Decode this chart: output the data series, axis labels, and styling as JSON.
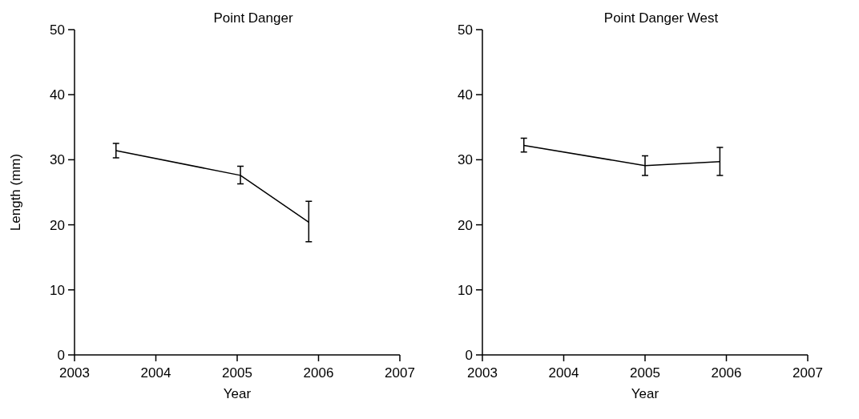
{
  "chart_data": [
    {
      "type": "line",
      "title": "Point Danger",
      "xlabel": "Year",
      "ylabel": "Length (mm)",
      "x": [
        2003.51,
        2005.04,
        2005.88
      ],
      "series": [
        {
          "color": "#000000",
          "values": [
            31.4,
            27.6,
            20.4
          ],
          "errors": [
            [
              30.3,
              32.5
            ],
            [
              26.3,
              29.0
            ],
            [
              17.4,
              23.6
            ]
          ]
        }
      ],
      "xlim": [
        2003,
        2007
      ],
      "xticks": [
        2003,
        2004,
        2005,
        2006,
        2007
      ],
      "ylim": [
        0,
        50
      ],
      "yticks": [
        0,
        10,
        20,
        30,
        40,
        50
      ],
      "grid": false,
      "marker": "none",
      "line_style": "solid"
    },
    {
      "type": "line",
      "title": "Point Danger West",
      "xlabel": "Year",
      "x": [
        2003.51,
        2005.0,
        2005.92
      ],
      "series": [
        {
          "color": "#000000",
          "values": [
            32.2,
            29.1,
            29.7
          ],
          "errors": [
            [
              31.2,
              33.3
            ],
            [
              27.6,
              30.6
            ],
            [
              27.6,
              31.9
            ]
          ]
        }
      ],
      "xlim": [
        2003,
        2007
      ],
      "xticks": [
        2003,
        2004,
        2005,
        2006,
        2007
      ],
      "ylim": [
        0,
        50
      ],
      "yticks": [
        0,
        10,
        20,
        30,
        40,
        50
      ],
      "grid": false,
      "marker": "none",
      "line_style": "solid"
    }
  ]
}
